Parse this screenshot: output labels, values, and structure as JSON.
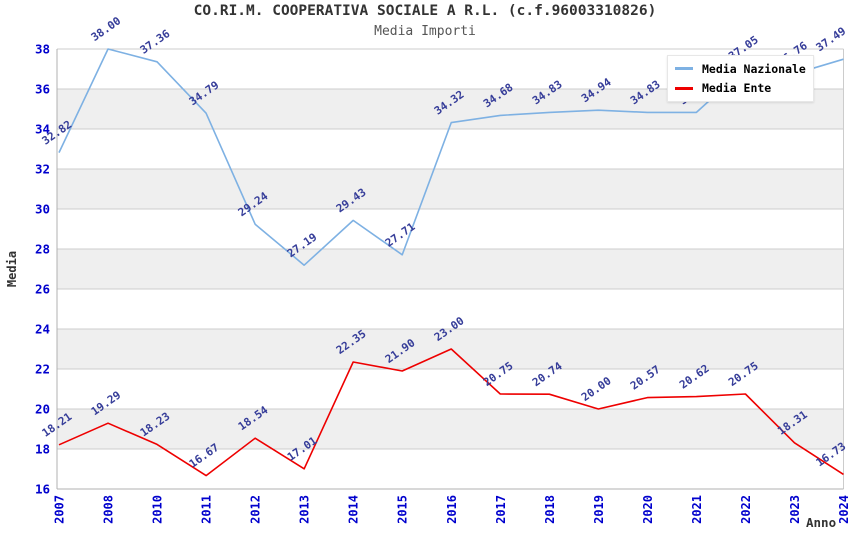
{
  "chart_data": {
    "type": "line",
    "title": "CO.RI.M. COOPERATIVA SOCIALE A R.L. (c.f.96003310826)",
    "subtitle": "Media Importi",
    "xlabel": "Anno",
    "ylabel": "Media",
    "ylim": [
      16,
      38
    ],
    "ytick_step": 2,
    "ytick_labels": [
      "16",
      "18",
      "20",
      "22",
      "24",
      "26",
      "28",
      "30",
      "32",
      "34",
      "36",
      "38"
    ],
    "grid": "horizontal-gridlines-with-alternating-bands",
    "legend_position": "top-right-overlay",
    "categories": [
      "2007",
      "2008",
      "2010",
      "2011",
      "2012",
      "2013",
      "2014",
      "2015",
      "2016",
      "2017",
      "2018",
      "2019",
      "2020",
      "2021",
      "2022",
      "2023",
      "2024"
    ],
    "series": [
      {
        "name": "Media Nazionale",
        "color": "#7eb1e3",
        "values": [
          32.82,
          38.0,
          37.36,
          34.79,
          29.24,
          27.19,
          29.43,
          27.71,
          34.32,
          34.68,
          34.83,
          34.94,
          34.83,
          34.83,
          37.05,
          36.76,
          37.49
        ],
        "labels_hidden_behind_legend_indices": [
          13,
          15
        ]
      },
      {
        "name": "Media Ente",
        "color": "#ee0000",
        "values": [
          18.21,
          19.29,
          18.23,
          16.67,
          18.54,
          17.01,
          22.35,
          21.9,
          23.0,
          20.75,
          20.74,
          20.0,
          20.57,
          20.62,
          20.75,
          18.31,
          16.73
        ],
        "labels_hidden_behind_legend_indices": []
      }
    ]
  },
  "colors": {
    "title_text": "#333333",
    "subtitle_text": "#555555",
    "axis_tick_text": "#0000cd",
    "data_label_text": "#363d99",
    "axis_title_text": "#333333",
    "gridline": "#cccccc",
    "band_fill": "#efefef",
    "plot_border": "#b0b0b0",
    "legend_text": "#000000",
    "series_blue": "#7eb1e3",
    "series_red": "#ee0000"
  }
}
